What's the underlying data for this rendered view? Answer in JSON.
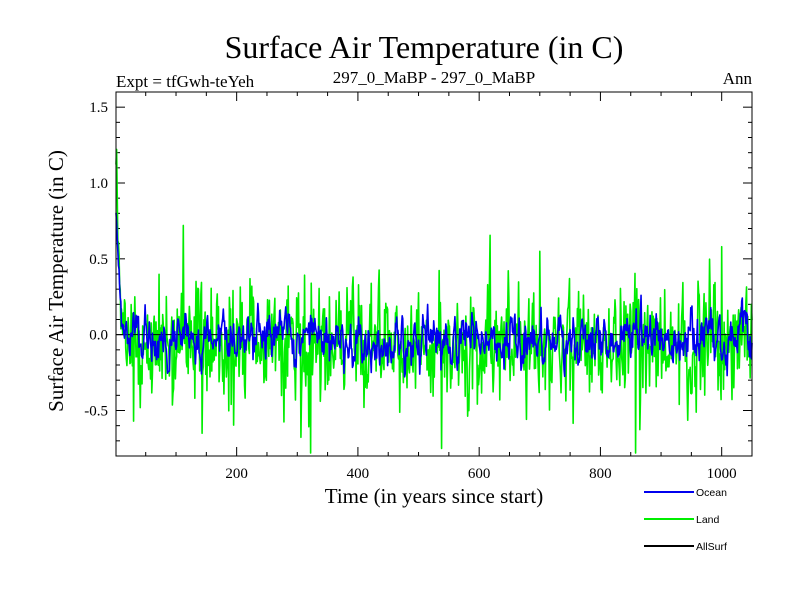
{
  "chart_data": {
    "type": "line",
    "title": "Surface Air Temperature (in C)",
    "left_note": "Expt = tfGwh-teYeh",
    "subtitle": "297_0_MaBP - 297_0_MaBP",
    "right_note": "Ann",
    "xlabel": "Time (in years since start)",
    "ylabel": "Surface Air Temperature (in C)",
    "xlim": [
      1,
      1050
    ],
    "ylim": [
      -0.8,
      1.6
    ],
    "x_ticks": [
      200,
      400,
      600,
      800,
      1000
    ],
    "x_tick_labels": [
      "200",
      "400",
      "600",
      "800",
      "1000"
    ],
    "y_ticks": [
      1.5,
      1.0,
      0.5,
      0.0,
      -0.5
    ],
    "y_tick_labels": [
      "1.5",
      "1.0",
      "0.5",
      "0.0",
      "-0.5"
    ],
    "legend": [
      "Ocean",
      "Land",
      "AllSurf"
    ],
    "colors": {
      "ocean": "#0000ee",
      "land": "#00ee00",
      "allsurf": "#000000"
    },
    "series": [
      {
        "name": "Land",
        "color": "#00ee00",
        "generator": "land",
        "x_start": 1,
        "x_end": 1050,
        "initial": 1.27,
        "spin_down_decay_years": 6,
        "sd": 0.18,
        "spikes": [
          [
            112,
            0.72
          ],
          [
            322,
            -0.78
          ],
          [
            538,
            -0.75
          ],
          [
            700,
            0.55
          ],
          [
            858,
            -0.78
          ],
          [
            1000,
            0.58
          ],
          [
            30,
            -0.57
          ],
          [
            143,
            -0.65
          ]
        ]
      },
      {
        "name": "Ocean",
        "color": "#0000ee",
        "generator": "ocean",
        "x_start": 1,
        "x_end": 1050,
        "initial": 0.85,
        "spin_down_decay_years": 5,
        "sd": 0.07
      },
      {
        "name": "AllSurf",
        "color": "#000000",
        "generator": "reference",
        "x": [
          1,
          1050
        ],
        "values": [
          0.0,
          0.0
        ]
      }
    ]
  }
}
